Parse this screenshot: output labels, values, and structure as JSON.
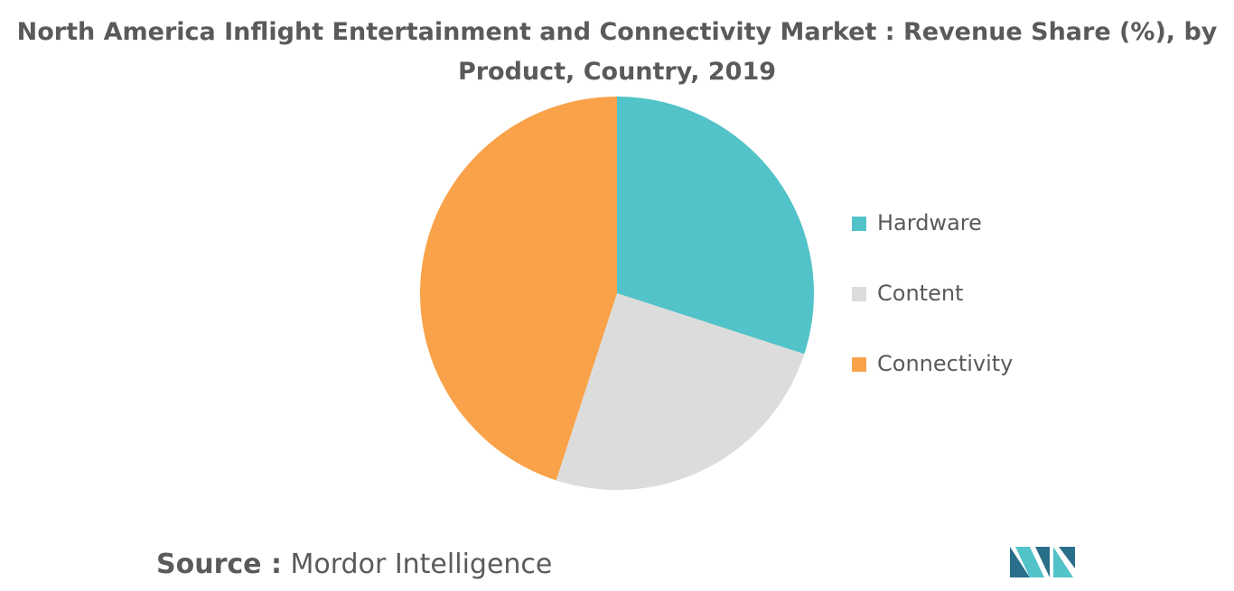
{
  "chart_data": {
    "type": "pie",
    "title": "North America Inflight Entertainment and Connectivity Market : Revenue Share (%), by Product, Country, 2019",
    "categories": [
      "Hardware",
      "Content",
      "Connectivity"
    ],
    "values": [
      30,
      25,
      45
    ],
    "colors": [
      "#52c3c8",
      "#dcdcdc",
      "#f9a24a"
    ],
    "legend": "right"
  },
  "source_label": "Source :",
  "source": "Mordor Intelligence"
}
